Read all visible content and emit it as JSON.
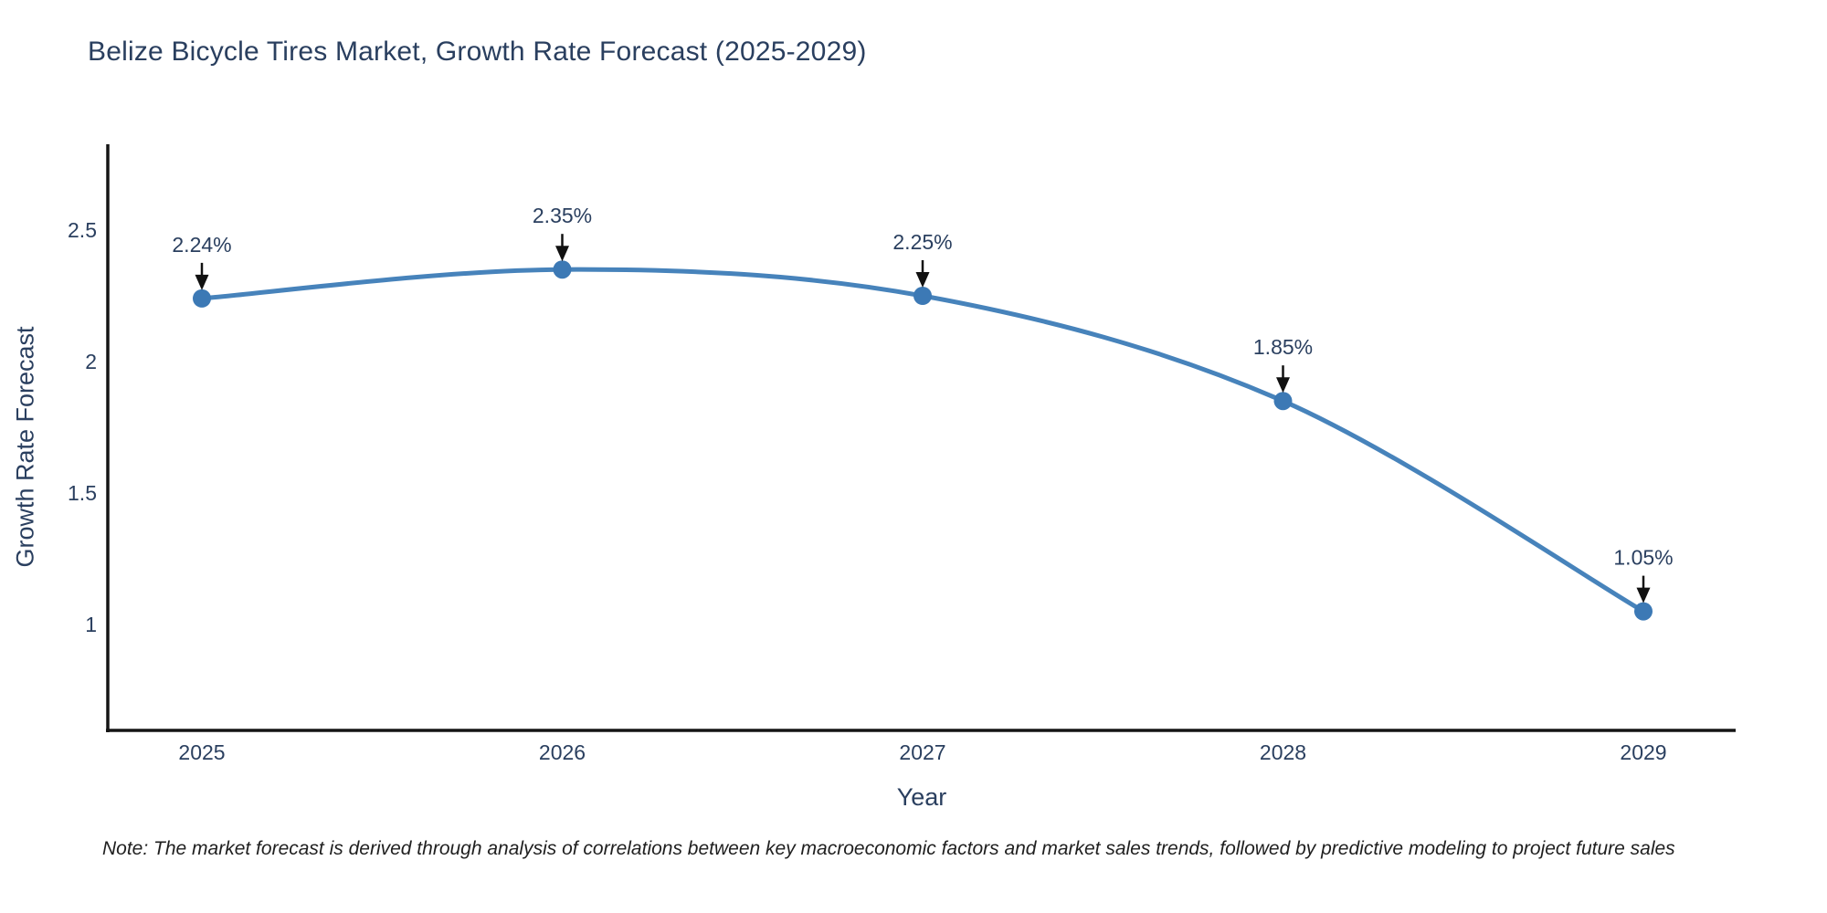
{
  "title": "Belize Bicycle Tires Market, Growth Rate Forecast (2025-2029)",
  "note": "Note: The market forecast is derived through analysis of correlations between key macroeconomic factors and market sales trends, followed by predictive modeling to project future sales",
  "chart_data": {
    "type": "line",
    "title": "Belize Bicycle Tires Market, Growth Rate Forecast (2025-2029)",
    "categories": [
      2025,
      2026,
      2027,
      2028,
      2029
    ],
    "values": [
      2.24,
      2.35,
      2.25,
      1.85,
      1.05
    ],
    "point_labels": [
      "2.24%",
      "2.35%",
      "2.25%",
      "1.85%",
      "1.05%"
    ],
    "xlabel": "Year",
    "ylabel": "Growth Rate Forecast",
    "yticks": [
      1,
      1.5,
      2,
      2.5
    ],
    "ylim": [
      0.55,
      2.82
    ],
    "grid": false,
    "legend": false,
    "line_color": "#4783bb",
    "marker_color": "#3c79b5",
    "axis_color": "#151515",
    "font_color": "#2a3f5f",
    "annotation_arrow_color": "#111111"
  }
}
